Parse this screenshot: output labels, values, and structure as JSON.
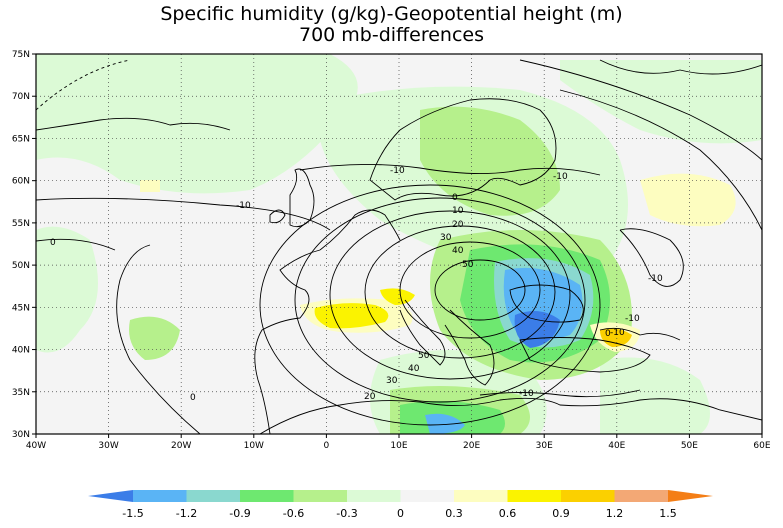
{
  "title_line1": "Specific humidity (g/kg)-Geopotential height (m)",
  "title_line2": "700 mb-differences",
  "map": {
    "lon_range": [
      -40,
      60
    ],
    "lat_range": [
      30,
      75
    ],
    "lon_tick_labels": [
      "40W",
      "30W",
      "20W",
      "10W",
      "0",
      "10E",
      "20E",
      "30E",
      "40E",
      "50E",
      "60E"
    ],
    "lat_tick_labels": [
      "30N",
      "35N",
      "40N",
      "45N",
      "50N",
      "55N",
      "60N",
      "65N",
      "70N",
      "75N"
    ],
    "contour_labels": [
      "-10",
      "-10",
      "-10",
      "-10",
      "0",
      "0",
      "0",
      "10",
      "20",
      "30",
      "40",
      "50",
      "50",
      "40",
      "30",
      "20",
      "-10",
      "-10",
      "-10",
      "0"
    ]
  },
  "colorbar": {
    "tick_labels": [
      "-1.5",
      "-1.2",
      "-0.9",
      "-0.6",
      "-0.3",
      "0",
      "0.3",
      "0.6",
      "0.9",
      "1.2",
      "1.5"
    ],
    "colors": [
      "#3b7de8",
      "#5ab4f5",
      "#8ad8cf",
      "#6ee870",
      "#b6f08c",
      "#dcfad6",
      "#f4f4f4",
      "#fdfdc0",
      "#fbf300",
      "#fbd000",
      "#f3a875",
      "#f47e16"
    ]
  }
}
